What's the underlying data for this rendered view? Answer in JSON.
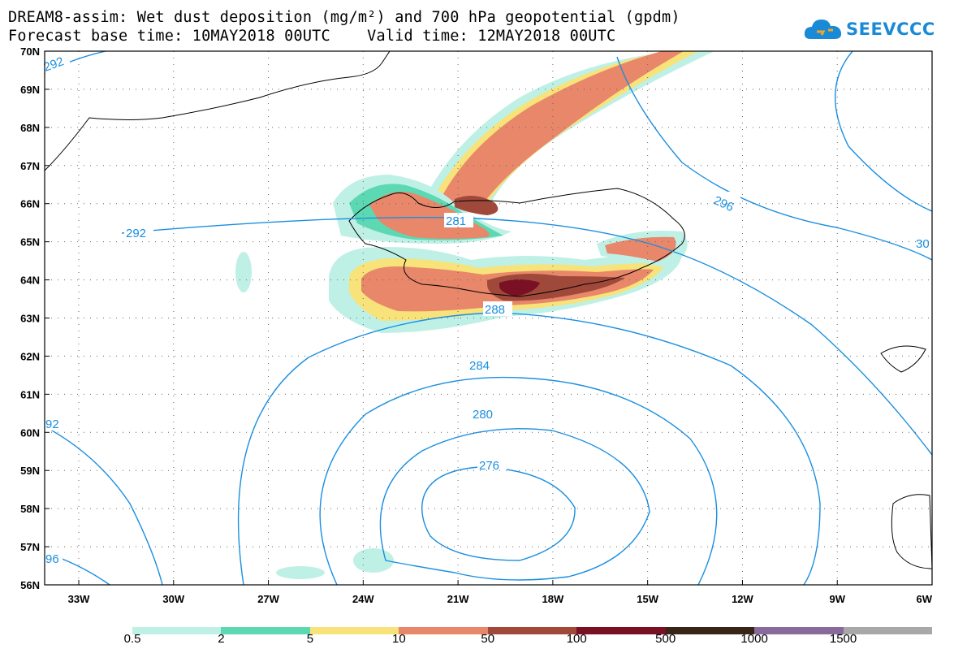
{
  "header": {
    "title_line1": "DREAM8-assim: Wet dust deposition (mg/m²) and 700 hPa geopotential (gpdm)",
    "title_line2": "Forecast base time: 10MAY2018 00UTC    Valid time: 12MAY2018 00UTC"
  },
  "logo": {
    "text": "SEEVCCC",
    "icon": "cloud-icon",
    "color": "#1a8ad6"
  },
  "map": {
    "lat_labels": [
      "70N",
      "69N",
      "68N",
      "67N",
      "66N",
      "65N",
      "64N",
      "63N",
      "62N",
      "61N",
      "60N",
      "59N",
      "58N",
      "57N",
      "56N"
    ],
    "lon_labels": [
      "33W",
      "30W",
      "27W",
      "24W",
      "21W",
      "18W",
      "15W",
      "12W",
      "9W",
      "6W"
    ],
    "contour_labels": [
      "292",
      "292",
      "296",
      "30",
      "281",
      "288",
      "284",
      "280",
      "276",
      "92",
      "96"
    ],
    "contour_color": "#1a8fe0"
  },
  "legend": {
    "labels": [
      "0.5",
      "2",
      "5",
      "10",
      "50",
      "100",
      "500",
      "1000",
      "1500"
    ],
    "colors": [
      "#bff0e6",
      "#5cd9b3",
      "#f7e37a",
      "#e8876a",
      "#a0493a",
      "#7a1024",
      "#3a2418",
      "#8a6a9c",
      "#a8a8a8"
    ]
  }
}
